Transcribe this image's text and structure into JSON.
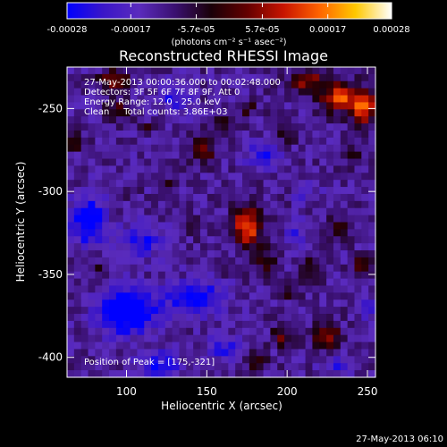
{
  "colors": {
    "background": "#000000",
    "foreground": "#ffffff",
    "colormap": [
      "#0000ff",
      "#3a16c8",
      "#5a2bbd",
      "#3a1070",
      "#1a0008",
      "#640000",
      "#c81400",
      "#ff6400",
      "#ffc800",
      "#ffffff"
    ]
  },
  "colorbar": {
    "tick_labels": [
      "-0.00028",
      "-0.00017",
      "-5.7e-05",
      "5.7e-05",
      "0.00017",
      "0.00028"
    ],
    "tick_values": [
      -0.00028,
      -0.00017,
      -5.7e-05,
      5.7e-05,
      0.00017,
      0.00028
    ],
    "range": [
      -0.00028,
      0.00028
    ],
    "units": "(photons cm⁻² s⁻¹ asec⁻²)"
  },
  "chart_data": {
    "type": "heatmap",
    "title": "Reconstructed RHESSI Image",
    "xlabel": "Heliocentric X (arcsec)",
    "ylabel": "Heliocentric Y (arcsec)",
    "xlim": [
      63,
      255
    ],
    "ylim": [
      -412,
      -225
    ],
    "x_ticks": [
      100,
      150,
      200,
      250
    ],
    "y_ticks": [
      -250,
      -300,
      -350,
      -400
    ],
    "x_tick_labels": [
      "100",
      "150",
      "200",
      "250"
    ],
    "y_tick_labels": [
      "-250",
      "-300",
      "-350",
      "-400"
    ],
    "annotations": [
      "27-May-2013 00:00:36.000 to 00:02:48.000",
      "Detectors: 3F 5F 6F 7F 8F 9F, Att 0",
      "Energy Range: 12.0 - 25.0 keV",
      "Clean     Total counts: 3.86E+03"
    ],
    "peak_label": "Position of Peak = [175,-321]",
    "peak": [
      175,
      -321
    ],
    "sources": [
      {
        "x": 175,
        "y": -321,
        "amp": 0.00028,
        "sx": 6,
        "sy": 8
      },
      {
        "x": 160,
        "y": -346,
        "amp": 9e-05,
        "sx": 4,
        "sy": 4
      },
      {
        "x": 186,
        "y": -341,
        "amp": 0.00011,
        "sx": 5,
        "sy": 5
      },
      {
        "x": 233,
        "y": -243,
        "amp": 0.00023,
        "sx": 9,
        "sy": 6
      },
      {
        "x": 248,
        "y": -250,
        "amp": 0.00022,
        "sx": 6,
        "sy": 7
      },
      {
        "x": 212,
        "y": -233,
        "amp": 0.00018,
        "sx": 7,
        "sy": 4
      },
      {
        "x": 93,
        "y": -233,
        "amp": 0.00017,
        "sx": 6,
        "sy": 4
      },
      {
        "x": 95,
        "y": -250,
        "amp": 0.00012,
        "sx": 5,
        "sy": 4
      },
      {
        "x": 148,
        "y": -275,
        "amp": 0.00014,
        "sx": 5,
        "sy": 5
      },
      {
        "x": 160,
        "y": -258,
        "amp": 0.0001,
        "sx": 4,
        "sy": 4
      },
      {
        "x": 175,
        "y": -250,
        "amp": 9e-05,
        "sx": 5,
        "sy": 3
      },
      {
        "x": 200,
        "y": -266,
        "amp": 8e-05,
        "sx": 4,
        "sy": 4
      },
      {
        "x": 125,
        "y": -297,
        "amp": 7e-05,
        "sx": 4,
        "sy": 3
      },
      {
        "x": 100,
        "y": -300,
        "amp": 6e-05,
        "sx": 4,
        "sy": 3
      },
      {
        "x": 232,
        "y": -322,
        "amp": 0.00012,
        "sx": 5,
        "sy": 4
      },
      {
        "x": 215,
        "y": -345,
        "amp": 0.00011,
        "sx": 4,
        "sy": 5
      },
      {
        "x": 200,
        "y": -360,
        "amp": 9e-05,
        "sx": 5,
        "sy": 4
      },
      {
        "x": 246,
        "y": -344,
        "amp": 0.0001,
        "sx": 4,
        "sy": 4
      },
      {
        "x": 225,
        "y": -388,
        "amp": 0.00018,
        "sx": 6,
        "sy": 5
      },
      {
        "x": 196,
        "y": -388,
        "amp": 0.00014,
        "sx": 4,
        "sy": 4
      },
      {
        "x": 180,
        "y": -402,
        "amp": 9e-05,
        "sx": 5,
        "sy": 4
      },
      {
        "x": 83,
        "y": -348,
        "amp": 8e-05,
        "sx": 4,
        "sy": 4
      },
      {
        "x": 68,
        "y": -270,
        "amp": 0.0001,
        "sx": 4,
        "sy": 4
      },
      {
        "x": 140,
        "y": -320,
        "amp": 6e-05,
        "sx": 4,
        "sy": 4
      },
      {
        "x": 240,
        "y": -278,
        "amp": 8e-05,
        "sx": 4,
        "sy": 4
      },
      {
        "x": 112,
        "y": -262,
        "amp": 7e-05,
        "sx": 3,
        "sy": 3
      },
      {
        "x": 87,
        "y": -232,
        "amp": 5e-05,
        "sx": 3,
        "sy": 3
      },
      {
        "x": 100,
        "y": -372,
        "amp": -0.00028,
        "sx": 12,
        "sy": 9
      },
      {
        "x": 143,
        "y": -365,
        "amp": -0.0002,
        "sx": 12,
        "sy": 7
      },
      {
        "x": 76,
        "y": -318,
        "amp": -0.0002,
        "sx": 8,
        "sy": 10
      },
      {
        "x": 110,
        "y": -330,
        "amp": -0.00014,
        "sx": 8,
        "sy": 7
      },
      {
        "x": 130,
        "y": -243,
        "amp": -0.00013,
        "sx": 7,
        "sy": 6
      },
      {
        "x": 185,
        "y": -278,
        "amp": -0.00012,
        "sx": 8,
        "sy": 6
      },
      {
        "x": 120,
        "y": -405,
        "amp": -0.00016,
        "sx": 9,
        "sy": 6
      },
      {
        "x": 160,
        "y": -395,
        "amp": -0.00012,
        "sx": 8,
        "sy": 5
      },
      {
        "x": 212,
        "y": -300,
        "amp": -8e-05,
        "sx": 5,
        "sy": 5
      },
      {
        "x": 205,
        "y": -325,
        "amp": -9e-05,
        "sx": 4,
        "sy": 5
      },
      {
        "x": 250,
        "y": -370,
        "amp": -8e-05,
        "sx": 5,
        "sy": 6
      },
      {
        "x": 230,
        "y": -405,
        "amp": -0.0001,
        "sx": 7,
        "sy": 4
      }
    ]
  },
  "footer": {
    "timestamp": "27-May-2013 06:10"
  }
}
